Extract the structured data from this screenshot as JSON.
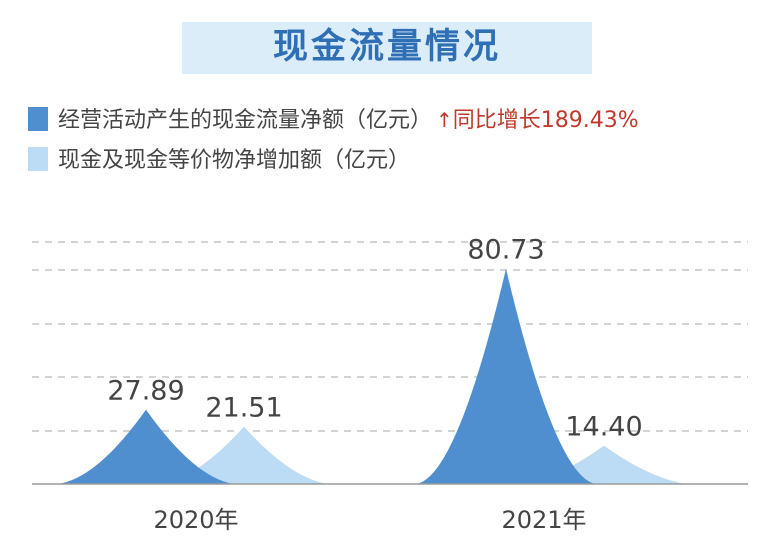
{
  "title": "现金流量情况",
  "legend": {
    "series1": "经营活动产生的现金流量净额（亿元）",
    "growth_arrow": "↑",
    "growth": "同比增长189.43%",
    "series2": "现金及现金等价物净增加额（亿元）"
  },
  "colors": {
    "series1": "#4f8fd0",
    "series2": "#bcdcf6",
    "growth": "#c0392b",
    "title_band": "#dcedfa"
  },
  "chart_data": {
    "type": "bar",
    "categories": [
      "2020年",
      "2021年"
    ],
    "series": [
      {
        "name": "经营活动产生的现金流量净额（亿元）",
        "values": [
          27.89,
          80.73
        ],
        "labels": [
          "27.89",
          "80.73"
        ]
      },
      {
        "name": "现金及现金等价物净增加额（亿元）",
        "values": [
          21.51,
          14.4
        ],
        "labels": [
          "21.51",
          "14.40"
        ]
      }
    ],
    "ylim": [
      0,
      90
    ],
    "grid": true,
    "legend_position": "top-left"
  }
}
